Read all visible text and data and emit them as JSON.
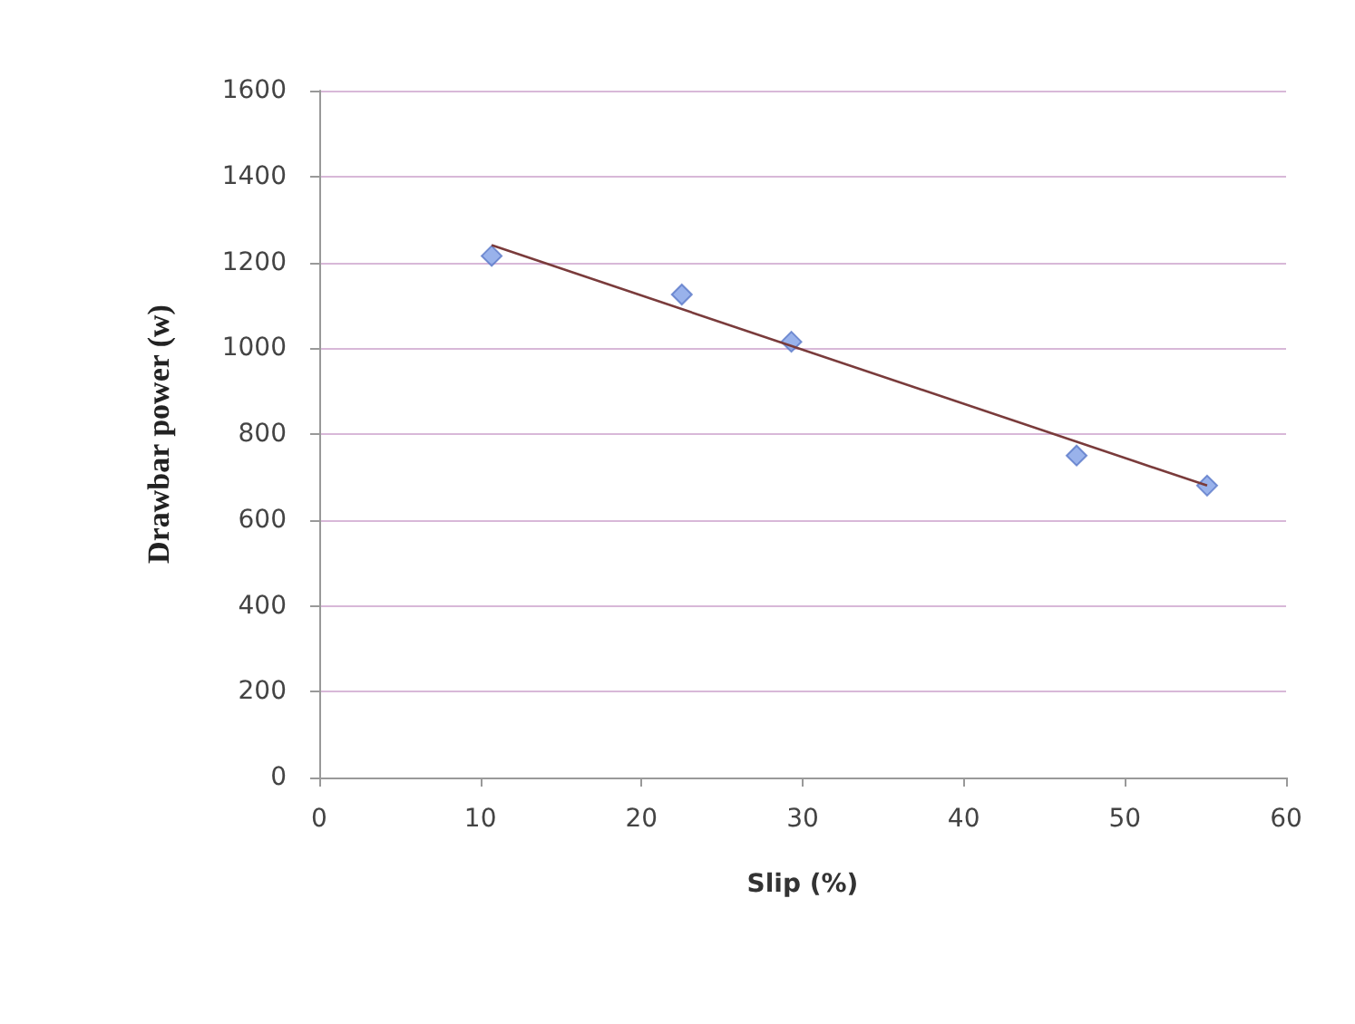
{
  "chart_data": {
    "type": "scatter",
    "xlabel": "Slip (%)",
    "ylabel": "Drawbar power (w)",
    "xlim": [
      0,
      60
    ],
    "xticks": [
      0,
      10,
      20,
      30,
      40,
      50,
      60
    ],
    "ylim": [
      0,
      1600
    ],
    "yticks": [
      0,
      200,
      400,
      600,
      800,
      1000,
      1200,
      1400,
      1600
    ],
    "grid": "y",
    "series": [
      {
        "color": "#7f9fe6",
        "marker": "diamond",
        "x": [
          10.7,
          22.5,
          29.3,
          47.0,
          55.1
        ],
        "values": [
          1215,
          1125,
          1015,
          750,
          680
        ]
      },
      {
        "type": "line",
        "color": "#7a3b3b",
        "marker": "none",
        "x": [
          10.7,
          55.1
        ],
        "values": [
          1240,
          680
        ]
      }
    ]
  }
}
